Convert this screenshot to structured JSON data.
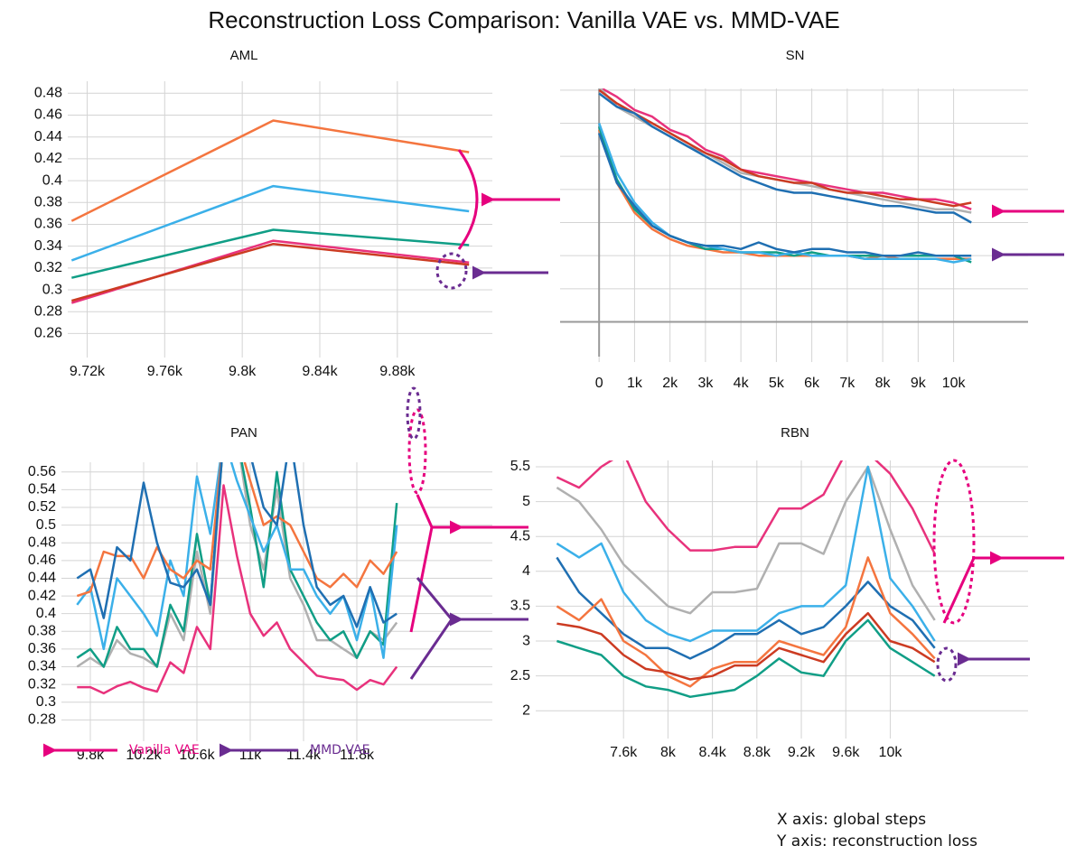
{
  "title": "Reconstruction Loss Comparison: Vanilla VAE vs. MMD-VAE",
  "chart_data": [
    {
      "type": "line",
      "title": "AML",
      "grid": true,
      "x": [
        9712,
        9816,
        9917
      ],
      "xlim": [
        9710,
        9929
      ],
      "xticks": [
        {
          "value": 9720,
          "label": "9.72k"
        },
        {
          "value": 9760,
          "label": "9.76k"
        },
        {
          "value": 9800,
          "label": "9.8k"
        },
        {
          "value": 9840,
          "label": "9.84k"
        },
        {
          "value": 9880,
          "label": "9.88k"
        }
      ],
      "ylim": [
        0.243,
        0.491
      ],
      "yticks": [
        0.26,
        0.28,
        0.3,
        0.32,
        0.34,
        0.36,
        0.38,
        0.4,
        0.42,
        0.44,
        0.46,
        0.48
      ],
      "series": [
        {
          "color": "#f4753f",
          "values": [
            0.363,
            0.455,
            0.426
          ]
        },
        {
          "color": "#3bb0e9",
          "values": [
            0.327,
            0.395,
            0.372
          ]
        },
        {
          "color": "#109e86",
          "values": [
            0.311,
            0.355,
            0.341
          ]
        },
        {
          "color": "#e8327c",
          "values": [
            0.288,
            0.345,
            0.325
          ]
        },
        {
          "color": "#cc3b22",
          "values": [
            0.29,
            0.342,
            0.323
          ]
        }
      ]
    },
    {
      "type": "line",
      "title": "SN",
      "grid": true,
      "zero_lines": true,
      "ytick_labels": false,
      "x": [
        0,
        500,
        1000,
        1500,
        2000,
        2500,
        3000,
        3500,
        4000,
        4500,
        5000,
        5500,
        6000,
        6500,
        7000,
        7500,
        8000,
        8500,
        9000,
        9500,
        10000,
        10500
      ],
      "xlim": [
        -1100,
        12100
      ],
      "xticks": [
        0,
        {
          "value": 1000,
          "label": "1k"
        },
        {
          "value": 2000,
          "label": "2k"
        },
        {
          "value": 3000,
          "label": "3k"
        },
        {
          "value": 4000,
          "label": "4k"
        },
        {
          "value": 5000,
          "label": "5k"
        },
        {
          "value": 6000,
          "label": "6k"
        },
        {
          "value": 7000,
          "label": "7k"
        },
        {
          "value": 8000,
          "label": "8k"
        },
        {
          "value": 9000,
          "label": "9k"
        },
        {
          "value": 10000,
          "label": "10k"
        }
      ],
      "ylim": [
        -1.05,
        7.05
      ],
      "yticks": [
        0,
        1,
        2,
        3,
        4,
        5,
        6,
        7
      ],
      "series": [
        {
          "color": "#e8327c",
          "values": [
            7.1,
            6.8,
            6.4,
            6.2,
            5.8,
            5.6,
            5.2,
            5.0,
            4.6,
            4.5,
            4.4,
            4.3,
            4.2,
            4.1,
            4.0,
            3.9,
            3.9,
            3.8,
            3.7,
            3.7,
            3.6,
            3.4
          ]
        },
        {
          "color": "#b0b0b0",
          "values": [
            7.1,
            6.5,
            6.2,
            5.9,
            5.6,
            5.3,
            5.1,
            4.8,
            4.5,
            4.4,
            4.3,
            4.2,
            4.1,
            4.0,
            3.9,
            3.8,
            3.7,
            3.6,
            3.5,
            3.4,
            3.4,
            3.3
          ]
        },
        {
          "color": "#cc3b22",
          "values": [
            7.0,
            6.6,
            6.3,
            6.0,
            5.7,
            5.4,
            5.1,
            4.9,
            4.6,
            4.4,
            4.3,
            4.2,
            4.2,
            4.0,
            3.9,
            3.9,
            3.8,
            3.7,
            3.7,
            3.6,
            3.5,
            3.6
          ]
        },
        {
          "color": "#1f6fb2",
          "values": [
            6.9,
            6.5,
            6.3,
            5.9,
            5.6,
            5.3,
            5.0,
            4.7,
            4.4,
            4.2,
            4.0,
            3.9,
            3.9,
            3.8,
            3.7,
            3.6,
            3.5,
            3.5,
            3.4,
            3.3,
            3.3,
            3.0
          ]
        },
        {
          "color": "#f4753f",
          "values": [
            5.8,
            4.2,
            3.3,
            2.8,
            2.5,
            2.3,
            2.2,
            2.1,
            2.1,
            2.0,
            2.0,
            2.0,
            2.0,
            2.0,
            2.0,
            1.9,
            2.0,
            1.9,
            1.9,
            1.9,
            1.9,
            1.9
          ]
        },
        {
          "color": "#109e86",
          "values": [
            5.9,
            4.3,
            3.4,
            2.9,
            2.6,
            2.4,
            2.2,
            2.2,
            2.1,
            2.1,
            2.1,
            2.0,
            2.1,
            2.0,
            2.0,
            2.0,
            2.0,
            2.0,
            2.0,
            2.0,
            2.0,
            1.8
          ]
        },
        {
          "color": "#3bb0e9",
          "values": [
            6.0,
            4.5,
            3.6,
            3.0,
            2.6,
            2.4,
            2.3,
            2.2,
            2.1,
            2.1,
            2.0,
            2.1,
            2.0,
            2.0,
            2.0,
            1.9,
            1.9,
            1.9,
            1.9,
            1.9,
            1.8,
            1.9
          ]
        },
        {
          "color": "#1f6fb2",
          "values": [
            5.7,
            4.2,
            3.5,
            2.9,
            2.6,
            2.4,
            2.3,
            2.3,
            2.2,
            2.4,
            2.2,
            2.1,
            2.2,
            2.2,
            2.1,
            2.1,
            2.0,
            2.0,
            2.1,
            2.0,
            2.0,
            2.0
          ]
        }
      ]
    },
    {
      "type": "line",
      "title": "PAN",
      "grid": true,
      "x": [
        9700,
        9800,
        9900,
        10000,
        10100,
        10200,
        10300,
        10400,
        10500,
        10600,
        10700,
        10800,
        10900,
        11000,
        11100,
        11200,
        11300,
        11400,
        11500,
        11600,
        11700,
        11800,
        11900,
        12000,
        12100
      ],
      "xlim": [
        9583,
        12817
      ],
      "xticks": [
        {
          "value": 9800,
          "label": "9.8k"
        },
        {
          "value": 10200,
          "label": "10.2k"
        },
        {
          "value": 10600,
          "label": "10.6k"
        },
        {
          "value": 11000,
          "label": "11k"
        },
        {
          "value": 11400,
          "label": "11.4k"
        },
        {
          "value": 11800,
          "label": "11.8k"
        }
      ],
      "ylim": [
        0.262,
        0.571
      ],
      "yticks": [
        0.28,
        0.3,
        0.32,
        0.34,
        0.36,
        0.38,
        0.4,
        0.42,
        0.44,
        0.46,
        0.48,
        0.5,
        0.52,
        0.54,
        0.56
      ],
      "series": [
        {
          "color": "#e8327c",
          "values": [
            0.317,
            0.317,
            0.31,
            0.318,
            0.323,
            0.316,
            0.312,
            0.345,
            0.333,
            0.385,
            0.36,
            0.545,
            0.465,
            0.4,
            0.375,
            0.39,
            0.36,
            0.345,
            0.33,
            0.327,
            0.325,
            0.314,
            0.325,
            0.32,
            0.34
          ]
        },
        {
          "color": "#b0b0b0",
          "values": [
            0.34,
            0.35,
            0.34,
            0.37,
            0.355,
            0.35,
            0.34,
            0.4,
            0.37,
            0.47,
            0.4,
            0.6,
            0.6,
            0.5,
            0.45,
            0.54,
            0.44,
            0.41,
            0.37,
            0.37,
            0.36,
            0.35,
            0.38,
            0.37,
            0.39
          ]
        },
        {
          "color": "#109e86",
          "values": [
            0.35,
            0.36,
            0.34,
            0.385,
            0.36,
            0.36,
            0.34,
            0.41,
            0.38,
            0.49,
            0.41,
            0.6,
            0.6,
            0.52,
            0.43,
            0.56,
            0.45,
            0.42,
            0.39,
            0.37,
            0.38,
            0.35,
            0.38,
            0.365,
            0.525
          ]
        },
        {
          "color": "#3bb0e9",
          "values": [
            0.41,
            0.43,
            0.36,
            0.44,
            0.42,
            0.4,
            0.375,
            0.46,
            0.42,
            0.555,
            0.49,
            0.6,
            0.55,
            0.51,
            0.47,
            0.5,
            0.45,
            0.45,
            0.42,
            0.4,
            0.42,
            0.37,
            0.43,
            0.35,
            0.5
          ]
        },
        {
          "color": "#f4753f",
          "values": [
            0.42,
            0.425,
            0.47,
            0.465,
            0.465,
            0.44,
            0.475,
            0.45,
            0.44,
            0.46,
            0.45,
            0.6,
            0.6,
            0.55,
            0.5,
            0.51,
            0.5,
            0.47,
            0.44,
            0.43,
            0.445,
            0.43,
            0.46,
            0.445,
            0.47
          ]
        },
        {
          "color": "#1f6fb2",
          "values": [
            0.44,
            0.45,
            0.395,
            0.475,
            0.46,
            0.548,
            0.48,
            0.435,
            0.43,
            0.45,
            0.41,
            0.6,
            0.6,
            0.58,
            0.52,
            0.5,
            0.6,
            0.5,
            0.43,
            0.41,
            0.42,
            0.385,
            0.43,
            0.39,
            0.4
          ]
        }
      ]
    },
    {
      "type": "line",
      "title": "RBN",
      "grid": true,
      "x": [
        7000,
        7200,
        7400,
        7600,
        7800,
        8000,
        8200,
        8400,
        8600,
        8800,
        9000,
        9200,
        9400,
        9600,
        9800,
        10000,
        10200,
        10400
      ],
      "xlim": [
        6810,
        11240
      ],
      "xticks": [
        {
          "value": 7600,
          "label": "7.6k"
        },
        {
          "value": 8000,
          "label": "8k"
        },
        {
          "value": 8400,
          "label": "8.4k"
        },
        {
          "value": 8800,
          "label": "8.8k"
        },
        {
          "value": 9200,
          "label": "9.2k"
        },
        {
          "value": 9600,
          "label": "9.6k"
        },
        {
          "value": 10000,
          "label": "10k"
        }
      ],
      "ylim": [
        1.68,
        5.59
      ],
      "yticks": [
        2,
        2.5,
        3,
        3.5,
        4,
        4.5,
        5,
        5.5
      ],
      "series": [
        {
          "color": "#e8327c",
          "values": [
            5.35,
            5.2,
            5.5,
            5.7,
            5.0,
            4.6,
            4.3,
            4.3,
            4.35,
            4.35,
            4.9,
            4.9,
            5.1,
            5.7,
            5.7,
            5.4,
            4.9,
            4.25
          ]
        },
        {
          "color": "#b0b0b0",
          "values": [
            5.2,
            5.0,
            4.6,
            4.1,
            3.8,
            3.5,
            3.4,
            3.7,
            3.7,
            3.75,
            4.4,
            4.4,
            4.25,
            5.0,
            5.5,
            4.6,
            3.8,
            3.3
          ]
        },
        {
          "color": "#3bb0e9",
          "values": [
            4.4,
            4.2,
            4.4,
            3.7,
            3.3,
            3.1,
            3.0,
            3.15,
            3.15,
            3.15,
            3.4,
            3.5,
            3.5,
            3.8,
            5.5,
            3.9,
            3.5,
            3.0
          ]
        },
        {
          "color": "#1f6fb2",
          "values": [
            4.2,
            3.7,
            3.4,
            3.1,
            2.9,
            2.9,
            2.75,
            2.9,
            3.1,
            3.1,
            3.3,
            3.1,
            3.2,
            3.5,
            3.85,
            3.5,
            3.3,
            2.9
          ]
        },
        {
          "color": "#f4753f",
          "values": [
            3.5,
            3.3,
            3.6,
            3.0,
            2.8,
            2.5,
            2.35,
            2.6,
            2.7,
            2.7,
            3.0,
            2.9,
            2.8,
            3.2,
            4.2,
            3.4,
            3.1,
            2.75
          ]
        },
        {
          "color": "#cc3b22",
          "values": [
            3.25,
            3.2,
            3.1,
            2.8,
            2.6,
            2.55,
            2.45,
            2.5,
            2.65,
            2.65,
            2.9,
            2.8,
            2.7,
            3.1,
            3.4,
            3.0,
            2.9,
            2.7
          ]
        },
        {
          "color": "#109e86",
          "values": [
            3.0,
            2.9,
            2.8,
            2.5,
            2.35,
            2.3,
            2.2,
            2.25,
            2.3,
            2.5,
            2.75,
            2.55,
            2.5,
            3.0,
            3.3,
            2.9,
            2.7,
            2.5
          ]
        }
      ]
    }
  ],
  "legend": [
    {
      "label": "Vanilla VAE",
      "color": "#e6007e"
    },
    {
      "label": "MMD VAE",
      "color": "#6a2c91"
    }
  ],
  "notes": [
    "X axis: global steps",
    "Y axis: reconstruction loss"
  ]
}
